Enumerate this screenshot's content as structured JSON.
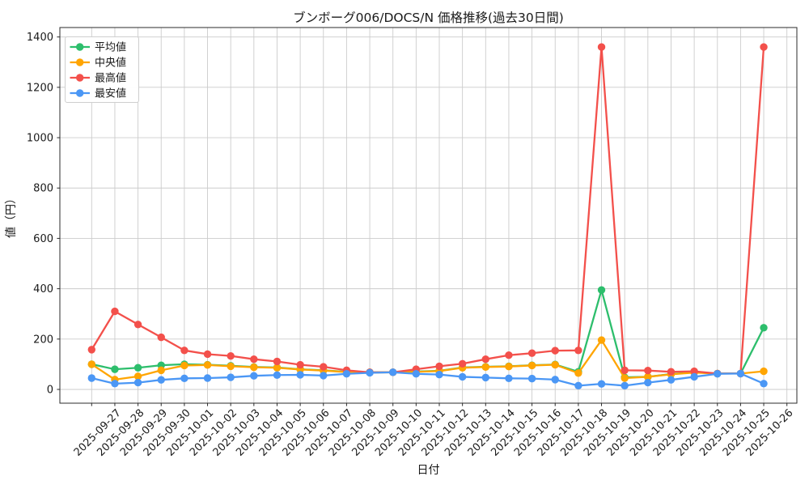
{
  "figure": {
    "title": "ブンボーグ006/DOCS/N 価格推移(過去30日間)",
    "xlabel": "日付",
    "ylabel": "値（円）"
  },
  "chart_data": {
    "type": "line",
    "title": "ブンボーグ006/DOCS/N 価格推移(過去30日間)",
    "xlabel": "日付",
    "ylabel": "値（円）",
    "grid": true,
    "legend_position": "upper left",
    "marker": "o",
    "ylim": [
      -68,
      1428
    ],
    "yticks": [
      0,
      200,
      400,
      600,
      800,
      1000,
      1200,
      1400
    ],
    "categories": [
      "2025-09-27",
      "2025-09-28",
      "2025-09-29",
      "2025-09-30",
      "2025-10-01",
      "2025-10-02",
      "2025-10-03",
      "2025-10-04",
      "2025-10-05",
      "2025-10-06",
      "2025-10-07",
      "2025-10-08",
      "2025-10-09",
      "2025-10-10",
      "2025-10-11",
      "2025-10-12",
      "2025-10-13",
      "2025-10-14",
      "2025-10-15",
      "2025-10-16",
      "2025-10-17",
      "2025-10-18",
      "2025-10-19",
      "2025-10-20",
      "2025-10-21",
      "2025-10-22",
      "2025-10-23",
      "2025-10-24",
      "2025-10-25",
      "2025-10-26"
    ],
    "layout_note": "Data dots sit on the gridline one slot left of each date label; an extra unlabeled leading point appears before 2025-09-27 and the 2025-10-26 gridline has no point.",
    "leading_unlabeled_point": {
      "平均値": 100,
      "中央値": 100,
      "最高値": 158,
      "最安値": 45
    },
    "series": [
      {
        "name": "平均値",
        "color": "#2dbe6c",
        "values": [
          80,
          86,
          96,
          100,
          98,
          94,
          89,
          87,
          80,
          76,
          70,
          68,
          68,
          71,
          74,
          87,
          90,
          92,
          96,
          99,
          70,
          395,
          48,
          50,
          61,
          68,
          63,
          63,
          245,
          null
        ]
      },
      {
        "name": "中央値",
        "color": "#ffa502",
        "values": [
          39,
          52,
          76,
          95,
          97,
          92,
          88,
          86,
          79,
          75,
          69,
          67,
          68,
          70,
          73,
          86,
          89,
          91,
          95,
          98,
          65,
          196,
          45,
          50,
          60,
          67,
          63,
          63,
          72,
          null
        ]
      },
      {
        "name": "最高値",
        "color": "#f3504b",
        "values": [
          310,
          258,
          207,
          155,
          140,
          133,
          120,
          111,
          98,
          90,
          76,
          68,
          68,
          80,
          92,
          102,
          120,
          136,
          144,
          154,
          155,
          1360,
          76,
          75,
          70,
          72,
          63,
          63,
          1360,
          null
        ]
      },
      {
        "name": "最安値",
        "color": "#4b97f5",
        "values": [
          23,
          27,
          38,
          44,
          45,
          48,
          54,
          57,
          58,
          55,
          62,
          66,
          68,
          62,
          59,
          50,
          47,
          44,
          43,
          39,
          15,
          22,
          15,
          27,
          38,
          50,
          62,
          63,
          23,
          null
        ]
      }
    ],
    "colors": {
      "grid": "#cccccc",
      "spine": "#2b2b2b",
      "background": "#ffffff",
      "legend_border": "#cfcfcf"
    }
  }
}
